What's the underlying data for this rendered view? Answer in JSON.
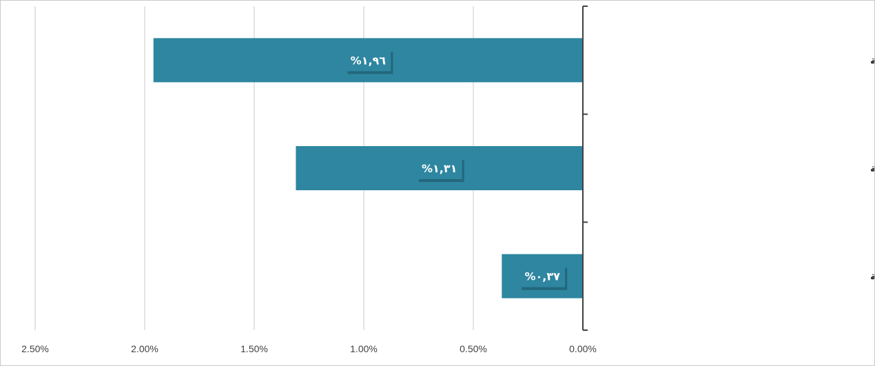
{
  "chart_data": {
    "type": "bar",
    "orientation": "horizontal",
    "reversed_x": true,
    "categories": [
      "تجارة التجزئة، باستثناء المركبات ذات المحركات والدراجات النارية",
      "تجارة الجملة، باستثناء المركبات ذات المحركات والدراجات النارية",
      "بيع وإصلاح المركبات ذات المحركات والدراجات النارية"
    ],
    "values": [
      1.96,
      1.31,
      0.37
    ],
    "data_labels": [
      "%١,٩٦",
      "%١,٣١",
      "%٠,٣٧"
    ],
    "x_ticks": [
      2.5,
      2.0,
      1.5,
      1.0,
      0.5,
      0.0
    ],
    "x_tick_labels": [
      "2.50%",
      "2.00%",
      "1.50%",
      "1.00%",
      "0.50%",
      "0.00%"
    ],
    "xlim": [
      0,
      2.5
    ],
    "grid": true,
    "colors": {
      "bar": "#2e86a0",
      "data_label_bg": "#2e86a0",
      "grid": "#c8c8c8",
      "axis": "#404040"
    }
  }
}
